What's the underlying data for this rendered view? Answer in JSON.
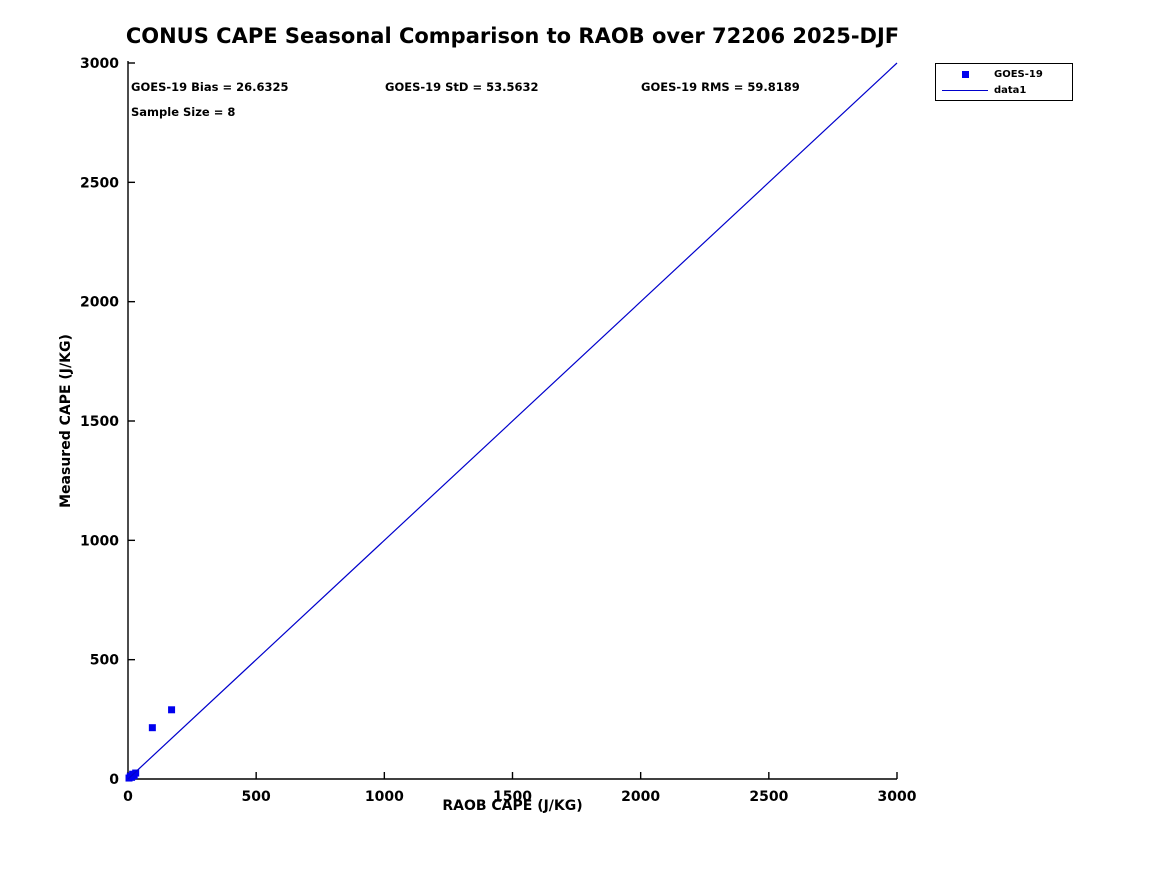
{
  "title": "CONUS CAPE Seasonal Comparison to RAOB over 72206 2025-DJF",
  "annotations": {
    "bias": "GOES-19 Bias = 26.6325",
    "std": "GOES-19 StD = 53.5632",
    "rms": "GOES-19 RMS = 59.8189",
    "sample_size": "Sample Size = 8"
  },
  "legend": [
    {
      "label": "GOES-19",
      "icon": "blue-square-marker"
    },
    {
      "label": "data1",
      "icon": "blue-line"
    }
  ],
  "colors": {
    "marker": "#0000ee",
    "line": "#0000cc",
    "axis": "#000000",
    "background": "#ffffff"
  },
  "chart_data": {
    "type": "scatter",
    "title": "CONUS CAPE Seasonal Comparison to RAOB over 72206 2025-DJF",
    "xlabel": "RAOB CAPE (J/KG)",
    "ylabel": "Measured CAPE (J/KG)",
    "xlim": [
      0,
      3000
    ],
    "ylim": [
      0,
      3000
    ],
    "xticks": [
      0,
      500,
      1000,
      1500,
      2000,
      2500,
      3000
    ],
    "yticks": [
      0,
      500,
      1000,
      1500,
      2000,
      2500,
      3000
    ],
    "grid": false,
    "legend_position": "top-right-outside",
    "series": [
      {
        "name": "GOES-19",
        "type": "scatter",
        "marker": "square",
        "color": "#0000ee",
        "points": [
          [
            4,
            4
          ],
          [
            9,
            12
          ],
          [
            14,
            7
          ],
          [
            18,
            20
          ],
          [
            24,
            14
          ],
          [
            30,
            25
          ],
          [
            95,
            215
          ],
          [
            170,
            290
          ]
        ]
      },
      {
        "name": "data1",
        "type": "line",
        "color": "#0000cc",
        "points": [
          [
            0,
            0
          ],
          [
            3000,
            3000
          ]
        ]
      }
    ],
    "stats": {
      "bias": 26.6325,
      "std": 53.5632,
      "rms": 59.8189,
      "sample_size": 8
    }
  }
}
